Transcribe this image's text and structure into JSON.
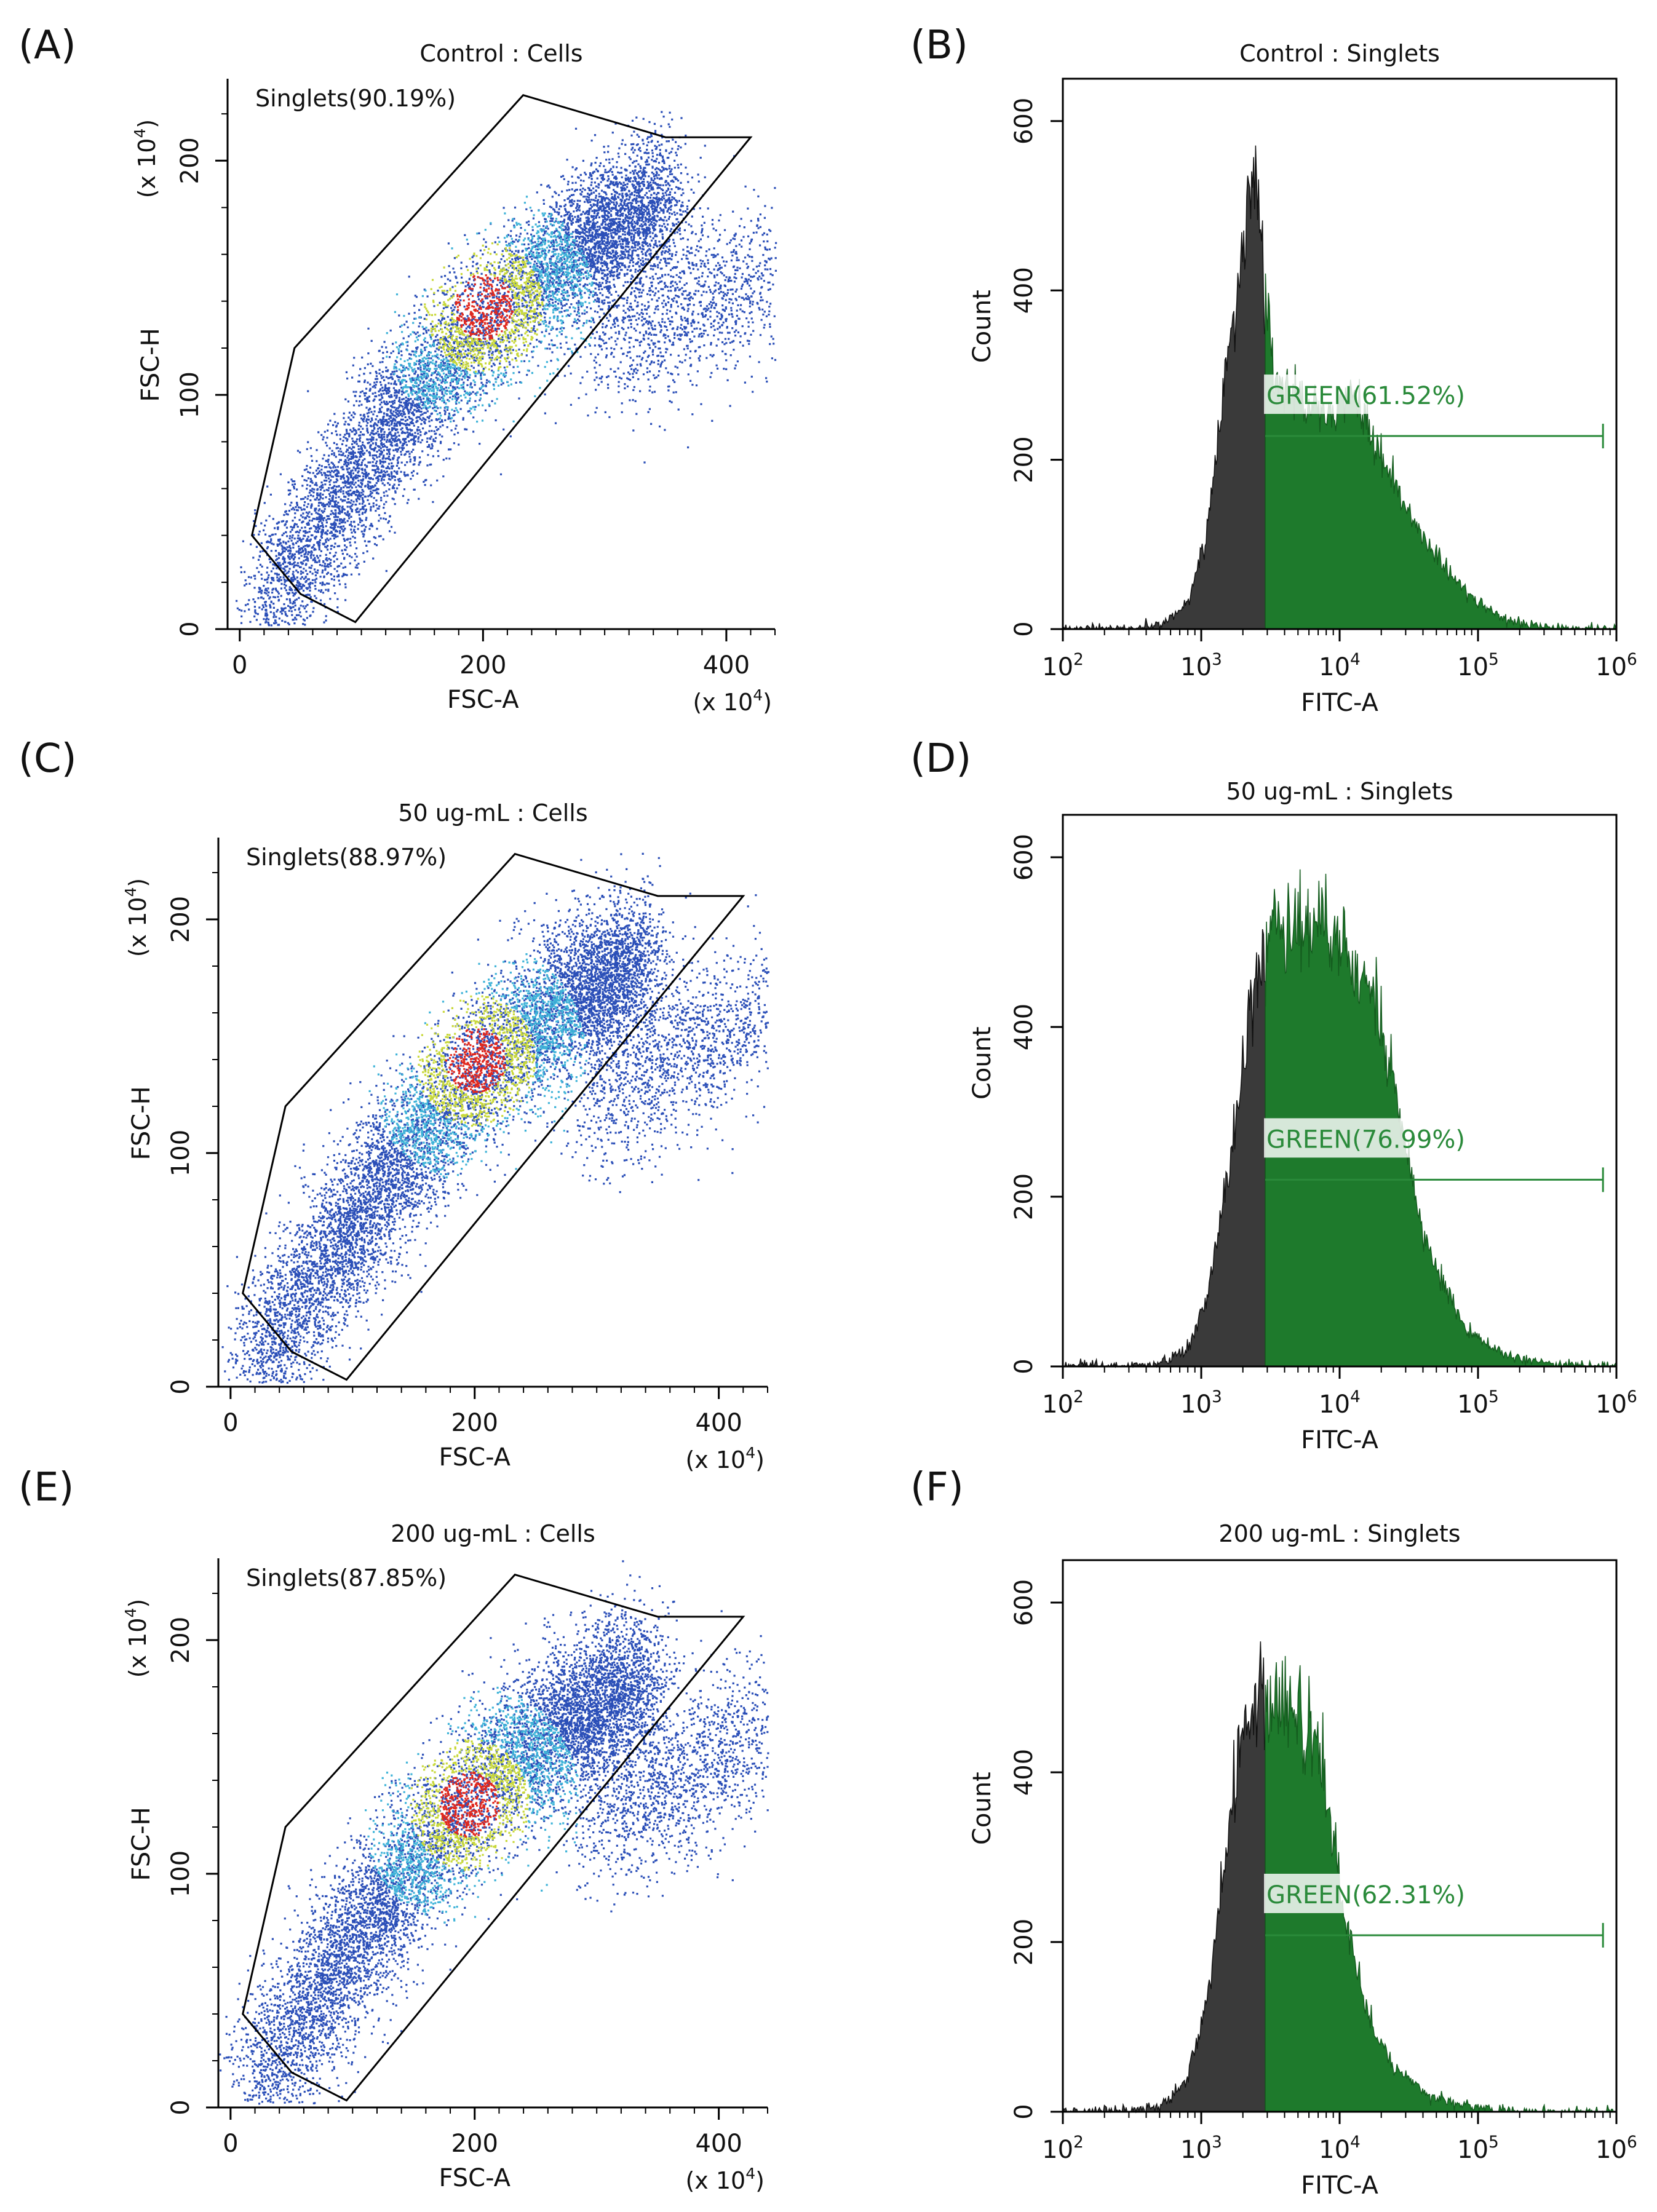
{
  "figure": {
    "scatter_panels": [
      {
        "label": "(A)",
        "title": "Control : Cells",
        "gate_label": "Singlets(90.19%)"
      },
      {
        "label": "(C)",
        "title": "50 ug-mL : Cells",
        "gate_label": "Singlets(88.97%)"
      },
      {
        "label": "(E)",
        "title": "200 ug-mL : Cells",
        "gate_label": "Singlets(87.85%)"
      }
    ],
    "histogram_panels": [
      {
        "label": "(B)",
        "title": "Control : Singlets",
        "gate_label": "GREEN(61.52%)"
      },
      {
        "label": "(D)",
        "title": "50 ug-mL : Singlets",
        "gate_label": "GREEN(76.99%)"
      },
      {
        "label": "(F)",
        "title": "200 ug-mL : Singlets",
        "gate_label": "GREEN(62.31%)"
      }
    ],
    "scatter_axes": {
      "xlabel": "FSC-A",
      "ylabel": "FSC-H",
      "x_ticks": [
        "0",
        "200",
        "400"
      ],
      "y_ticks": [
        "0",
        "100",
        "200"
      ],
      "x_mult_base": "(x 10",
      "x_mult_exp": "4",
      "x_mult_close": ")",
      "y_mult_base": "(x 10",
      "y_mult_exp": "4",
      "y_mult_close": ")"
    },
    "hist_axes": {
      "xlabel": "FITC-A",
      "ylabel": "Count",
      "y_ticks": [
        "0",
        "200",
        "400",
        "600"
      ],
      "x_tick_base": "10",
      "x_tick_exps": [
        "2",
        "3",
        "4",
        "5",
        "6"
      ]
    }
  },
  "chart_data": [
    {
      "type": "scatter",
      "panel": "A",
      "title": "Control : Cells",
      "xlabel": "FSC-A (x 10^4)",
      "ylabel": "FSC-H (x 10^4)",
      "xlim": [
        -10,
        440
      ],
      "ylim": [
        0,
        235
      ],
      "gate": {
        "name": "Singlets",
        "percent": 90.19,
        "polygon": [
          [
            10,
            40
          ],
          [
            45,
            120
          ],
          [
            233,
            228
          ],
          [
            350,
            210
          ],
          [
            420,
            210
          ],
          [
            95,
            3
          ],
          [
            50,
            15
          ]
        ]
      },
      "populations": [
        {
          "name": "main",
          "n": 9000,
          "trend": [
            [
              15,
              5
            ],
            [
              60,
              40
            ],
            [
              140,
              100
            ],
            [
              220,
              140
            ],
            [
              300,
              170
            ],
            [
              350,
              185
            ]
          ],
          "sd_x": 14,
          "sd_y": 15
        },
        {
          "name": "doublets",
          "n": 1300,
          "trend": [
            [
              300,
              120
            ],
            [
              380,
              140
            ],
            [
              440,
              160
            ]
          ],
          "sd_x": 25,
          "sd_y": 16
        }
      ],
      "hotspot": [
        200,
        138
      ]
    },
    {
      "type": "histogram",
      "panel": "B",
      "title": "Control : Singlets",
      "xscale": "log",
      "xlim": [
        100,
        1000000
      ],
      "ylim": [
        0,
        650
      ],
      "xlabel": "FITC-A",
      "ylabel": "Count",
      "gate": {
        "name": "GREEN",
        "percent": 61.52,
        "x_from": 2900,
        "x_to": 800000,
        "marker_y": 228
      },
      "profile": [
        [
          100,
          0
        ],
        [
          300,
          0
        ],
        [
          500,
          6
        ],
        [
          800,
          30
        ],
        [
          1100,
          110
        ],
        [
          1500,
          300
        ],
        [
          2000,
          450
        ],
        [
          2500,
          555
        ],
        [
          2900,
          400
        ],
        [
          3500,
          300
        ],
        [
          5000,
          270
        ],
        [
          8000,
          255
        ],
        [
          12000,
          290
        ],
        [
          20000,
          200
        ],
        [
          40000,
          110
        ],
        [
          80000,
          45
        ],
        [
          150000,
          12
        ],
        [
          300000,
          2
        ],
        [
          500000,
          0
        ]
      ]
    },
    {
      "type": "scatter",
      "panel": "C",
      "title": "50 ug-mL : Cells",
      "xlabel": "FSC-A (x 10^4)",
      "ylabel": "FSC-H (x 10^4)",
      "xlim": [
        -10,
        440
      ],
      "ylim": [
        0,
        235
      ],
      "gate": {
        "name": "Singlets",
        "percent": 88.97,
        "polygon": [
          [
            10,
            40
          ],
          [
            45,
            120
          ],
          [
            233,
            228
          ],
          [
            350,
            210
          ],
          [
            420,
            210
          ],
          [
            95,
            3
          ],
          [
            50,
            15
          ]
        ]
      },
      "populations": [
        {
          "name": "main",
          "n": 9500,
          "trend": [
            [
              15,
              5
            ],
            [
              60,
              40
            ],
            [
              140,
              100
            ],
            [
              210,
              140
            ],
            [
              290,
              170
            ],
            [
              340,
              185
            ]
          ],
          "sd_x": 15,
          "sd_y": 16
        },
        {
          "name": "doublets",
          "n": 1400,
          "trend": [
            [
              300,
              120
            ],
            [
              380,
              145
            ],
            [
              440,
              165
            ]
          ],
          "sd_x": 25,
          "sd_y": 16
        }
      ],
      "hotspot": [
        200,
        140
      ]
    },
    {
      "type": "histogram",
      "panel": "D",
      "title": "50 ug-mL : Singlets",
      "xscale": "log",
      "xlim": [
        100,
        1000000
      ],
      "ylim": [
        0,
        650
      ],
      "xlabel": "FITC-A",
      "ylabel": "Count",
      "gate": {
        "name": "GREEN",
        "percent": 76.99,
        "x_from": 2900,
        "x_to": 800000,
        "marker_y": 220
      },
      "profile": [
        [
          100,
          0
        ],
        [
          300,
          1
        ],
        [
          500,
          4
        ],
        [
          800,
          20
        ],
        [
          1100,
          80
        ],
        [
          1500,
          210
        ],
        [
          2000,
          350
        ],
        [
          2500,
          450
        ],
        [
          2900,
          480
        ],
        [
          3500,
          525
        ],
        [
          5000,
          510
        ],
        [
          8000,
          520
        ],
        [
          12000,
          480
        ],
        [
          18000,
          430
        ],
        [
          25000,
          330
        ],
        [
          40000,
          150
        ],
        [
          80000,
          45
        ],
        [
          150000,
          15
        ],
        [
          300000,
          4
        ],
        [
          600000,
          0
        ]
      ]
    },
    {
      "type": "scatter",
      "panel": "E",
      "title": "200 ug-mL : Cells",
      "xlabel": "FSC-A (x 10^4)",
      "ylabel": "FSC-H (x 10^4)",
      "xlim": [
        -10,
        440
      ],
      "ylim": [
        0,
        235
      ],
      "gate": {
        "name": "Singlets",
        "percent": 87.85,
        "polygon": [
          [
            10,
            40
          ],
          [
            45,
            120
          ],
          [
            233,
            228
          ],
          [
            350,
            210
          ],
          [
            420,
            210
          ],
          [
            95,
            3
          ],
          [
            50,
            15
          ]
        ]
      },
      "populations": [
        {
          "name": "main",
          "n": 9500,
          "trend": [
            [
              15,
              5
            ],
            [
              60,
              40
            ],
            [
              140,
              100
            ],
            [
              210,
              140
            ],
            [
              290,
              170
            ],
            [
              340,
              185
            ]
          ],
          "sd_x": 15,
          "sd_y": 16
        },
        {
          "name": "doublets",
          "n": 1500,
          "trend": [
            [
              300,
              120
            ],
            [
              380,
              145
            ],
            [
              440,
              165
            ]
          ],
          "sd_x": 25,
          "sd_y": 16
        }
      ],
      "hotspot": [
        195,
        130
      ]
    },
    {
      "type": "histogram",
      "panel": "F",
      "title": "200 ug-mL : Singlets",
      "xscale": "log",
      "xlim": [
        100,
        1000000
      ],
      "ylim": [
        0,
        650
      ],
      "xlabel": "FITC-A",
      "ylabel": "Count",
      "gate": {
        "name": "GREEN",
        "percent": 62.31,
        "x_from": 2900,
        "x_to": 800000,
        "marker_y": 208
      },
      "profile": [
        [
          100,
          0
        ],
        [
          300,
          1
        ],
        [
          500,
          6
        ],
        [
          800,
          40
        ],
        [
          1100,
          130
        ],
        [
          1500,
          300
        ],
        [
          2000,
          450
        ],
        [
          2500,
          490
        ],
        [
          2900,
          485
        ],
        [
          3500,
          485
        ],
        [
          5000,
          470
        ],
        [
          7000,
          430
        ],
        [
          10000,
          270
        ],
        [
          15000,
          120
        ],
        [
          25000,
          50
        ],
        [
          50000,
          15
        ],
        [
          100000,
          4
        ],
        [
          200000,
          0
        ]
      ]
    }
  ]
}
